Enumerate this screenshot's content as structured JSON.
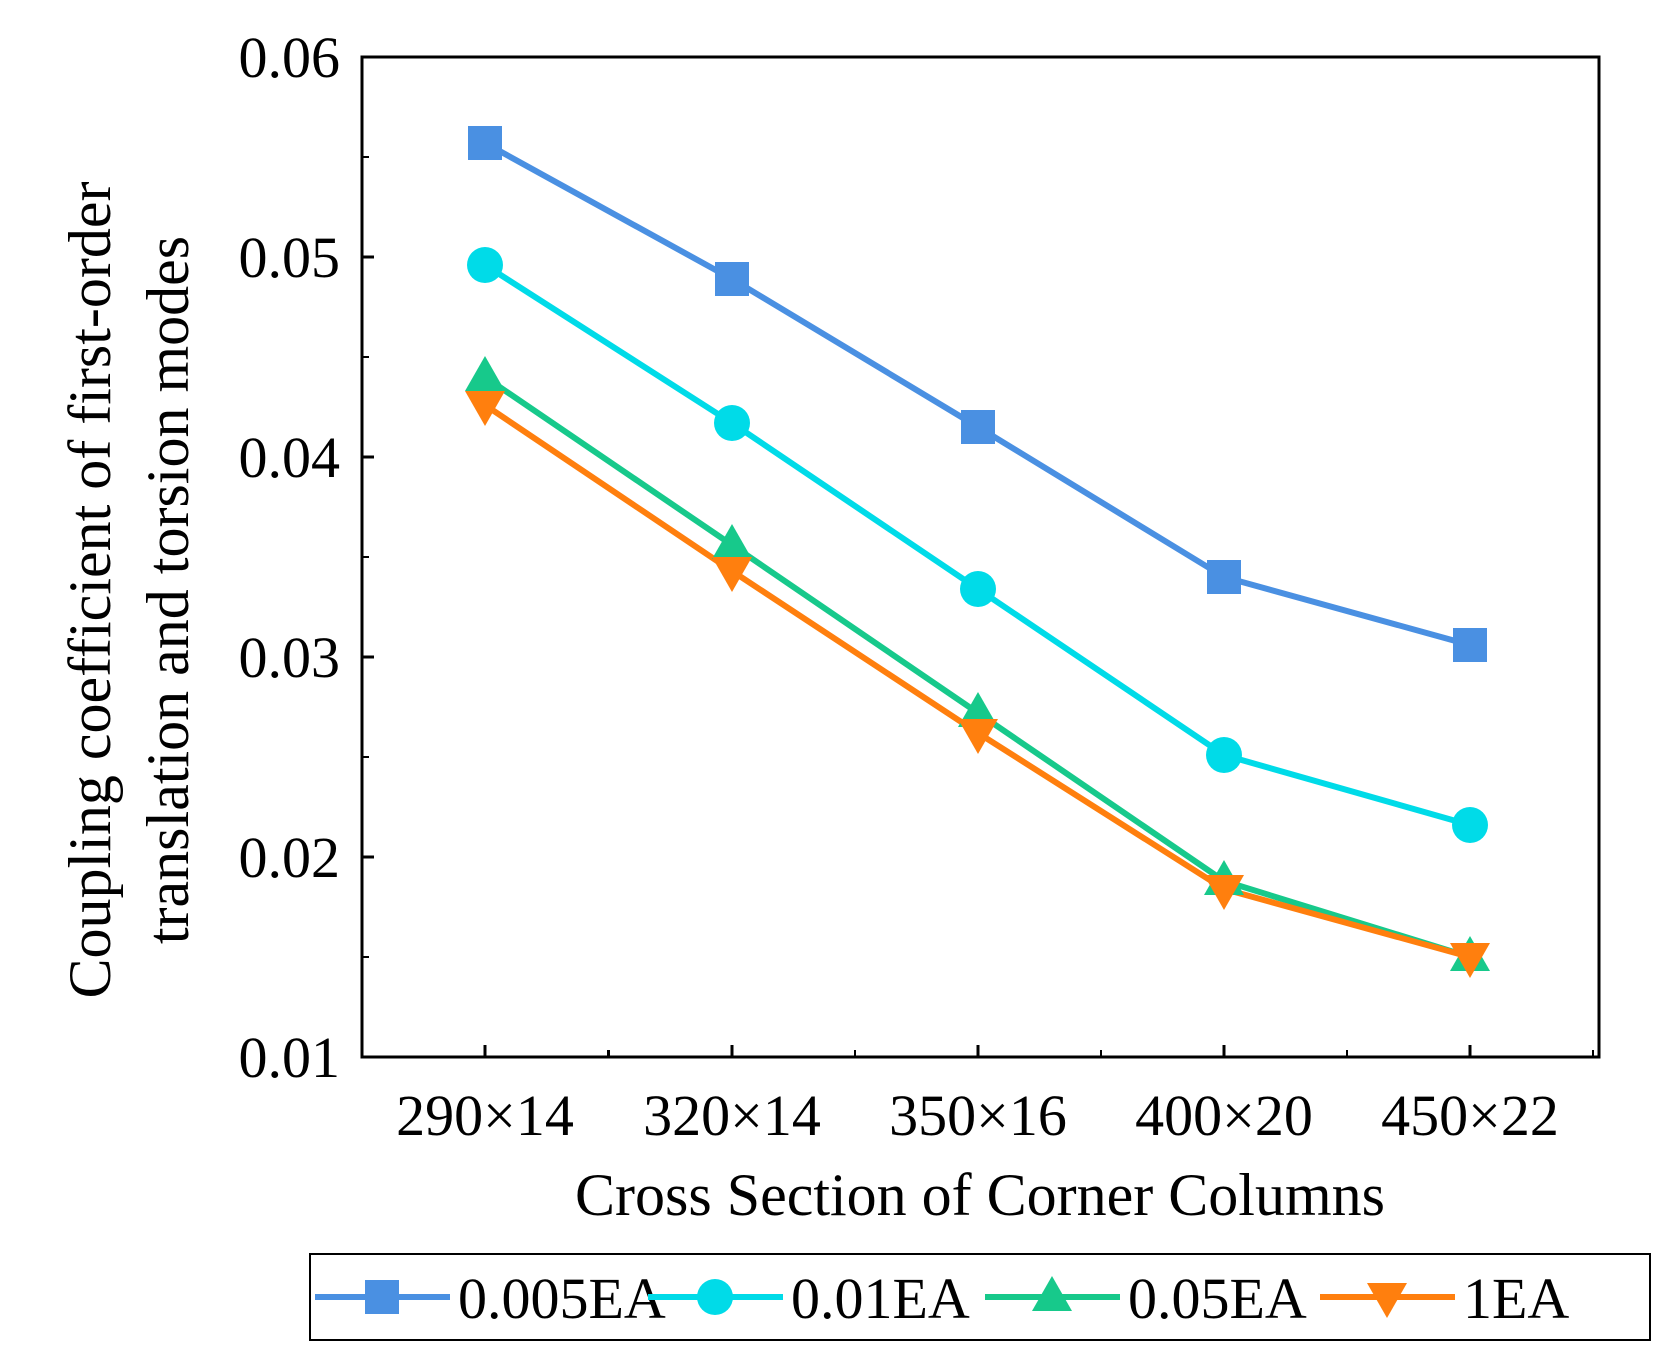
{
  "chart_data": {
    "type": "line",
    "xlabel": "Cross Section of Corner Columns",
    "ylabel_line1": "Coupling coefficient of first-order",
    "ylabel_line2": "translation and torsion modes",
    "categories": [
      "290×14",
      "320×14",
      "350×16",
      "400×20",
      "450×22"
    ],
    "ylim": [
      0.01,
      0.06
    ],
    "yticks": [
      "0.01",
      "0.02",
      "0.03",
      "0.04",
      "0.05",
      "0.06"
    ],
    "grid": false,
    "legend_position": "bottom",
    "series": [
      {
        "name": "0.005EA",
        "color": "#4a90e2",
        "marker": "square",
        "values": [
          0.0557,
          0.0489,
          0.0415,
          0.034,
          0.0306
        ]
      },
      {
        "name": "0.01EA",
        "color": "#00dbe8",
        "marker": "circle",
        "values": [
          0.0496,
          0.0417,
          0.0334,
          0.0251,
          0.0216
        ]
      },
      {
        "name": "0.05EA",
        "color": "#17c98b",
        "marker": "triangle-up",
        "values": [
          0.044,
          0.0356,
          0.0272,
          0.0188,
          0.015
        ]
      },
      {
        "name": "1EA",
        "color": "#ff7f0e",
        "marker": "triangle-down",
        "values": [
          0.0426,
          0.0343,
          0.0262,
          0.0184,
          0.015
        ]
      }
    ]
  }
}
